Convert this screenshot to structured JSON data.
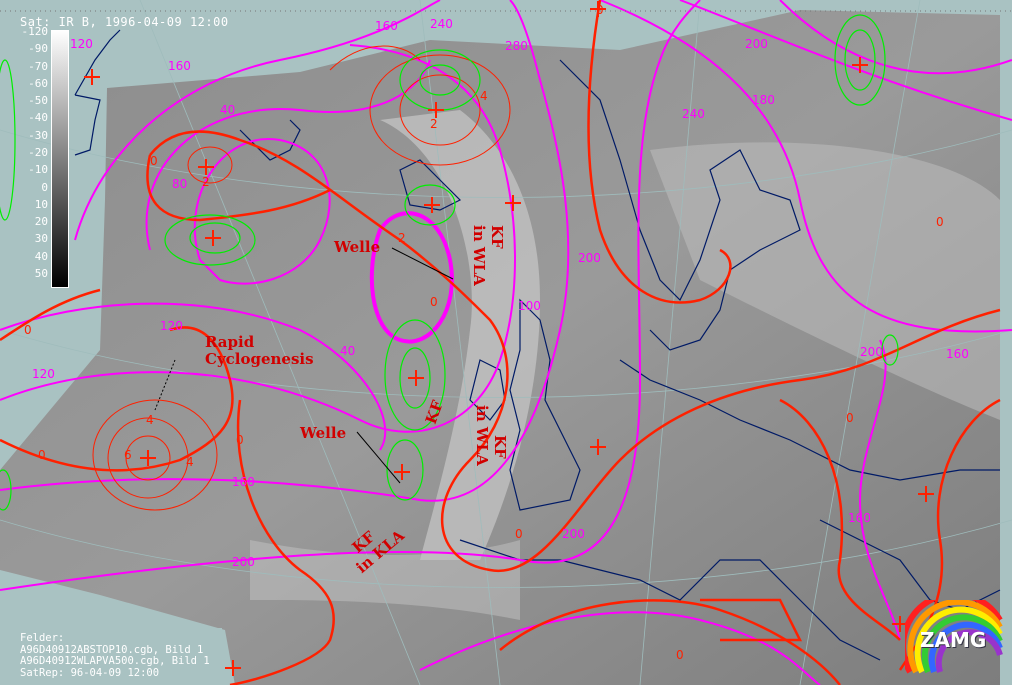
{
  "header": {
    "title": "Sat: IR B, 1996-04-09 12:00"
  },
  "legend": {
    "ticks": [
      "-120",
      "-90",
      "-70",
      "-60",
      "-50",
      "-40",
      "-30",
      "-20",
      "-10",
      "0",
      "10",
      "20",
      "30",
      "40",
      "50"
    ],
    "colors": {
      "top": "#ffffff",
      "bottom": "#000000"
    }
  },
  "info": {
    "lines": [
      "Felder:",
      "A96D40912ABSTOP10.cgb, Bild 1",
      "A96D40912WLAPVA500.cgb, Bild 1",
      "SatRep: 96-04-09 12:00"
    ]
  },
  "annotations": {
    "welle_1": "Welle",
    "welle_2": "Welle",
    "rapid_1": "Rapid",
    "rapid_2": "Cyclogenesis",
    "kf_wla_1_a": "KF",
    "kf_wla_1_b": "in WLA",
    "kf_wla_2_a": "KF",
    "kf_wla_2_b": "in WLA",
    "kf_mid": "KF",
    "kf_kla_a": "KF",
    "kf_kla_b": "in KLA"
  },
  "contour_labels": {
    "magenta": [
      "160",
      "120",
      "80",
      "40",
      "120",
      "120",
      "160",
      "200",
      "200",
      "240",
      "180",
      "200",
      "200",
      "160",
      "160",
      "200",
      "100",
      "40",
      "160",
      "240",
      "280"
    ],
    "red": [
      "0",
      "0",
      "0",
      "0",
      "0",
      "0",
      "0",
      "0",
      "0",
      "0",
      "2",
      "4",
      "6",
      "4",
      "2",
      "2",
      "4"
    ]
  },
  "logo": {
    "text": "ZAMG"
  },
  "colors": {
    "background": "#a9c2c2",
    "contour_magenta": "#ff00ff",
    "contour_red": "#ff2000",
    "contour_green": "#00ee00",
    "coastline": "#001a66",
    "annotation": "#d10000"
  }
}
